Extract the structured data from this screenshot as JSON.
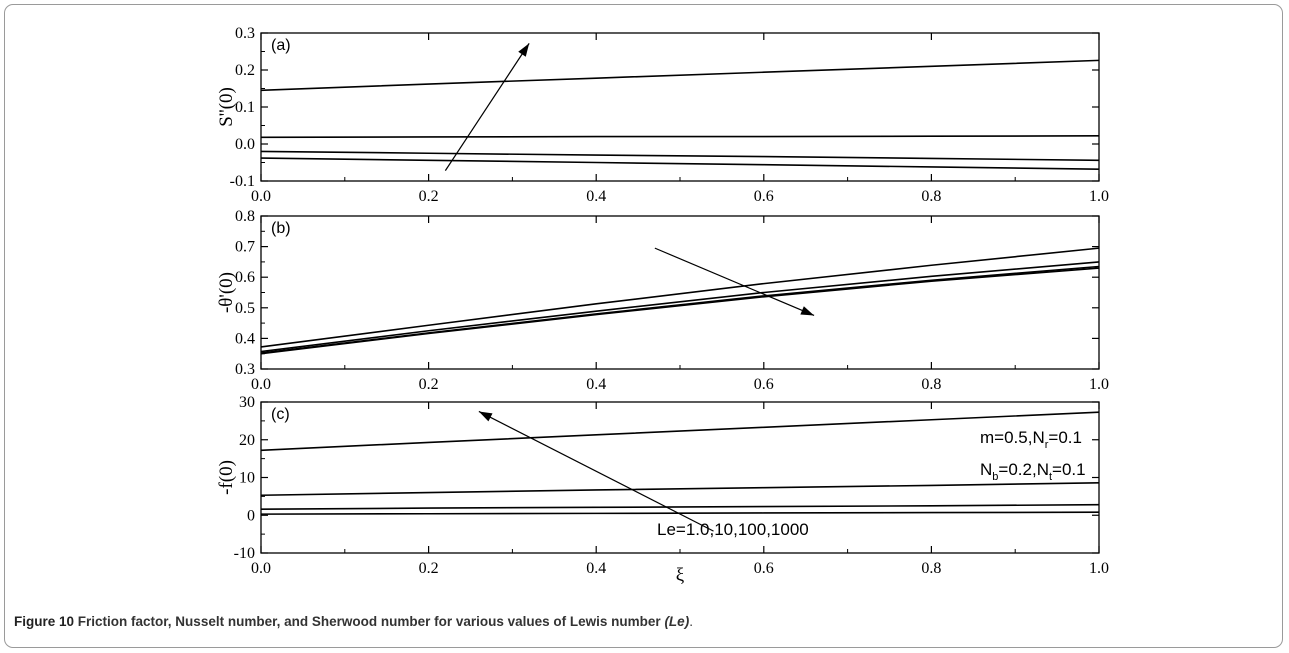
{
  "caption": {
    "label": "Figure 10",
    "text": "Friction factor, Nusselt number, and Sherwood number for various values of Lewis number",
    "italic": "(Le)",
    "end": "."
  },
  "chart_data": [
    {
      "type": "line",
      "panel_label": "(a)",
      "ylabel": "S''(0)",
      "xlabel": "",
      "xlim": [
        0.0,
        1.0
      ],
      "ylim": [
        -0.1,
        0.3
      ],
      "x_ticks": [
        "0.0",
        "0.2",
        "0.4",
        "0.6",
        "0.8",
        "1.0"
      ],
      "y_ticks": [
        "-0.1",
        "0.0",
        "0.1",
        "0.2",
        "0.3"
      ],
      "x": [
        0.0,
        0.2,
        0.4,
        0.6,
        0.8,
        1.0
      ],
      "series": [
        {
          "values": [
            -0.038,
            -0.044,
            -0.05,
            -0.056,
            -0.062,
            -0.068
          ]
        },
        {
          "values": [
            -0.02,
            -0.025,
            -0.03,
            -0.034,
            -0.039,
            -0.044
          ]
        },
        {
          "values": [
            0.018,
            0.019,
            0.02,
            0.02,
            0.021,
            0.022
          ]
        },
        {
          "values": [
            0.145,
            0.162,
            0.178,
            0.194,
            0.21,
            0.226
          ]
        }
      ],
      "arrow": {
        "from": [
          0.22,
          -0.072
        ],
        "to": [
          0.32,
          0.272
        ]
      }
    },
    {
      "type": "line",
      "panel_label": "(b)",
      "ylabel": "-θ'(0)",
      "xlabel": "",
      "xlim": [
        0.0,
        1.0
      ],
      "ylim": [
        0.3,
        0.8
      ],
      "x_ticks": [
        "0.0",
        "0.2",
        "0.4",
        "0.6",
        "0.8",
        "1.0"
      ],
      "y_ticks": [
        "0.3",
        "0.4",
        "0.5",
        "0.6",
        "0.7",
        "0.8"
      ],
      "x": [
        0.0,
        0.2,
        0.4,
        0.6,
        0.8,
        1.0
      ],
      "series": [
        {
          "values": [
            0.372,
            0.443,
            0.513,
            0.579,
            0.639,
            0.695
          ]
        },
        {
          "values": [
            0.357,
            0.425,
            0.489,
            0.55,
            0.603,
            0.65
          ]
        },
        {
          "values": [
            0.352,
            0.418,
            0.48,
            0.539,
            0.59,
            0.635
          ]
        },
        {
          "values": [
            0.35,
            0.416,
            0.478,
            0.536,
            0.587,
            0.63
          ]
        }
      ],
      "arrow": {
        "from": [
          0.47,
          0.695
        ],
        "to": [
          0.66,
          0.475
        ]
      }
    },
    {
      "type": "line",
      "panel_label": "(c)",
      "ylabel": "-f(0)",
      "xlabel": "ξ",
      "xlim": [
        0.0,
        1.0
      ],
      "ylim": [
        -10,
        30
      ],
      "x_ticks": [
        "0.0",
        "0.2",
        "0.4",
        "0.6",
        "0.8",
        "1.0"
      ],
      "y_ticks": [
        "-10",
        "0",
        "10",
        "20",
        "30"
      ],
      "x": [
        0.0,
        0.2,
        0.4,
        0.6,
        0.8,
        1.0
      ],
      "series": [
        {
          "values": [
            0.3,
            0.4,
            0.5,
            0.6,
            0.7,
            0.8
          ]
        },
        {
          "values": [
            1.6,
            1.9,
            2.1,
            2.3,
            2.5,
            2.8
          ]
        },
        {
          "values": [
            5.3,
            6.0,
            6.7,
            7.3,
            7.9,
            8.6
          ]
        },
        {
          "values": [
            17.2,
            19.3,
            21.3,
            23.3,
            25.3,
            27.3
          ]
        }
      ],
      "arrow": {
        "from": [
          0.54,
          -4.2
        ],
        "to": [
          0.26,
          27.5
        ]
      },
      "annotations": {
        "line1": {
          "m_text": "m=0.5,N",
          "m_sub": "r",
          "m_tail": "=0.1"
        },
        "line2": {
          "nb_text": "N",
          "nb_sub": "b",
          "nb_tail": "=0.2,N",
          "nt_sub": "t",
          "nt_tail": "=0.1"
        },
        "le": "Le=1.0,10,100,1000"
      }
    }
  ]
}
